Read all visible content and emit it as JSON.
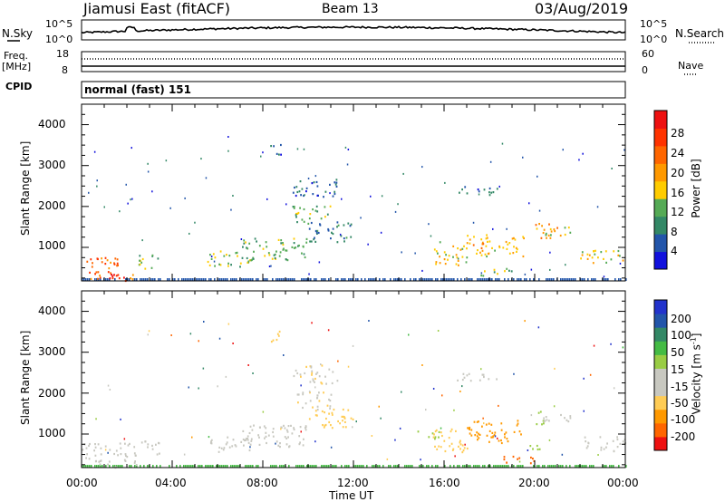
{
  "header": {
    "station": "Jiamusi East (fitACF)",
    "beam": "Beam 13",
    "date": "03/Aug/2019"
  },
  "noise_panel": {
    "left_label": "N.Sky",
    "right_label": "N.Search",
    "left_ticks": [
      "10^5",
      "10^0"
    ],
    "right_ticks": [
      "10^5",
      "10^0"
    ]
  },
  "freq_panel": {
    "left_label": "Freq.",
    "left_unit": "[MHz]",
    "right_label": "Nave",
    "left_ticks": [
      "18",
      "8"
    ],
    "right_ticks": [
      "60",
      "0"
    ]
  },
  "cpid_panel": {
    "label": "CPID",
    "mode_text": "normal (fast) 151"
  },
  "colors": {
    "velocity": [
      "#ee1111",
      "#ff6600",
      "#ff9900",
      "#ffcc55",
      "#c8c8c0",
      "#c8c8c0",
      "#99cc44",
      "#44bb44",
      "#338866",
      "#2255aa",
      "#2233cc"
    ],
    "power": [
      "#1111dd",
      "#2255aa",
      "#338866",
      "#55aa55",
      "#ffcc00",
      "#ff9900",
      "#ff6600",
      "#ff3300",
      "#ee1111"
    ]
  },
  "chart_data": [
    {
      "type": "heatmap",
      "panel": "power",
      "ylabel": "Slant Range [km]",
      "yticks": [
        "1000",
        "2000",
        "3000",
        "4000"
      ],
      "ylim": [
        180,
        4500
      ],
      "xlim": [
        0,
        24
      ],
      "colorbar": {
        "label": "Power [dB]",
        "ticks": [
          "4",
          "8",
          "12",
          "16",
          "20",
          "24",
          "28"
        ],
        "range": [
          0,
          32
        ]
      },
      "echo_regions": [
        {
          "t": [
            0.0,
            1.6
          ],
          "r": [
            200,
            800
          ],
          "value": 24
        },
        {
          "t": [
            1.2,
            2.0
          ],
          "r": [
            200,
            500
          ],
          "value": 30
        },
        {
          "t": [
            2.0,
            2.4
          ],
          "r": [
            200,
            450
          ],
          "value": 20
        },
        {
          "t": [
            2.5,
            3.5
          ],
          "r": [
            480,
            850
          ],
          "value": 12
        },
        {
          "t": [
            5.5,
            7.5
          ],
          "r": [
            550,
            950
          ],
          "value": 14
        },
        {
          "t": [
            7.0,
            10.0
          ],
          "r": [
            700,
            1250
          ],
          "value": 12
        },
        {
          "t": [
            9.3,
            11.0
          ],
          "r": [
            1600,
            2050
          ],
          "value": 12
        },
        {
          "t": [
            9.3,
            11.3
          ],
          "r": [
            2250,
            2700
          ],
          "value": 6
        },
        {
          "t": [
            10.0,
            12.0
          ],
          "r": [
            1150,
            1650
          ],
          "value": 8
        },
        {
          "t": [
            8.3,
            8.9
          ],
          "r": [
            3250,
            3550
          ],
          "value": 6
        },
        {
          "t": [
            15.5,
            17.0
          ],
          "r": [
            550,
            1150
          ],
          "value": 16
        },
        {
          "t": [
            16.5,
            18.5
          ],
          "r": [
            2300,
            2500
          ],
          "value": 6
        },
        {
          "t": [
            17.0,
            19.5
          ],
          "r": [
            800,
            1350
          ],
          "value": 18
        },
        {
          "t": [
            17.5,
            19.0
          ],
          "r": [
            300,
            500
          ],
          "value": 14
        },
        {
          "t": [
            20.0,
            21.0
          ],
          "r": [
            1200,
            1600
          ],
          "value": 20
        },
        {
          "t": [
            20.2,
            21.6
          ],
          "r": [
            1300,
            1550
          ],
          "value": 16
        },
        {
          "t": [
            22.0,
            24.0
          ],
          "r": [
            600,
            950
          ],
          "value": 16
        }
      ]
    },
    {
      "type": "heatmap",
      "panel": "velocity",
      "xlabel": "Time UT",
      "ylabel": "Slant Range [km]",
      "yticks": [
        "1000",
        "2000",
        "3000",
        "4000"
      ],
      "ylim": [
        180,
        4500
      ],
      "xticks": [
        "00:00",
        "04:00",
        "08:00",
        "12:00",
        "16:00",
        "20:00",
        "00:00"
      ],
      "xlim": [
        0,
        24
      ],
      "colorbar": {
        "label": "Velocity [m s",
        "label_superscript": "-1",
        "label_end": "]",
        "ticks": [
          "200",
          "100",
          "50",
          "15",
          "-15",
          "-50",
          "-100",
          "-200"
        ]
      },
      "echo_regions": [
        {
          "t": [
            0.0,
            2.4
          ],
          "r": [
            200,
            800
          ],
          "value": 0
        },
        {
          "t": [
            2.5,
            3.5
          ],
          "r": [
            480,
            850
          ],
          "value": 5
        },
        {
          "t": [
            5.5,
            7.5
          ],
          "r": [
            550,
            950
          ],
          "value": -5
        },
        {
          "t": [
            7.0,
            10.0
          ],
          "r": [
            700,
            1250
          ],
          "value": 0
        },
        {
          "t": [
            9.3,
            11.0
          ],
          "r": [
            1600,
            2050
          ],
          "value": -10
        },
        {
          "t": [
            9.3,
            11.3
          ],
          "r": [
            2250,
            2700
          ],
          "value": -10
        },
        {
          "t": [
            10.0,
            12.0
          ],
          "r": [
            1150,
            1650
          ],
          "value": -25
        },
        {
          "t": [
            8.3,
            8.9
          ],
          "r": [
            3250,
            3550
          ],
          "value": -30
        },
        {
          "t": [
            14.8,
            15.8
          ],
          "r": [
            900,
            1100
          ],
          "value": 40
        },
        {
          "t": [
            15.5,
            17.0
          ],
          "r": [
            550,
            1150
          ],
          "value": -30
        },
        {
          "t": [
            16.5,
            18.5
          ],
          "r": [
            2300,
            2500
          ],
          "value": 0
        },
        {
          "t": [
            17.0,
            19.5
          ],
          "r": [
            800,
            1350
          ],
          "value": -60
        },
        {
          "t": [
            18.5,
            20.0
          ],
          "r": [
            300,
            500
          ],
          "value": -150
        },
        {
          "t": [
            19.5,
            20.3
          ],
          "r": [
            600,
            800
          ],
          "value": 30
        },
        {
          "t": [
            20.0,
            20.5
          ],
          "r": [
            1250,
            1600
          ],
          "value": 40
        },
        {
          "t": [
            20.2,
            21.6
          ],
          "r": [
            1300,
            1550
          ],
          "value": 0
        },
        {
          "t": [
            22.0,
            24.0
          ],
          "r": [
            600,
            950
          ],
          "value": 0
        }
      ]
    }
  ]
}
